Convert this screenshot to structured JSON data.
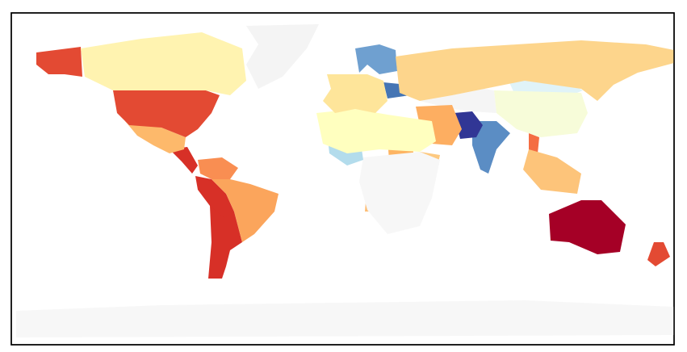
{
  "map": {
    "type": "choropleth",
    "frame_color": "#000000",
    "no_data_color": "#f7f7f7",
    "regions": [
      {
        "color": "#f4f4f4"
      },
      {
        "color": "#fff3b0"
      },
      {
        "color": "#e34a33"
      },
      {
        "color": "#e34a33"
      },
      {
        "color": "#fdb96b"
      },
      {
        "color": "#d73027"
      },
      {
        "color": "#f98e52"
      },
      {
        "color": "#fba55c"
      },
      {
        "color": "#d73027"
      },
      {
        "color": "#d73027"
      },
      {
        "color": "#fdd58c"
      },
      {
        "color": "#6fa0d0"
      },
      {
        "color": "#fee59a"
      },
      {
        "color": "#4575b4"
      },
      {
        "color": "#ffffbf"
      },
      {
        "color": "#b3dcec"
      },
      {
        "color": "#f7f7f7"
      },
      {
        "color": "#fdb462"
      },
      {
        "color": "#fdae61"
      },
      {
        "color": "#313695"
      },
      {
        "color": "#5b8dc4"
      },
      {
        "color": "#f7fcd9"
      },
      {
        "color": "#e0f3f8"
      },
      {
        "color": "#f5f5f5"
      },
      {
        "color": "#fdc47a"
      },
      {
        "color": "#f46d43"
      },
      {
        "color": "#a50026"
      },
      {
        "color": "#e34a33"
      },
      {
        "color": "#f7f7f7"
      },
      {
        "color": "#fdbd74"
      },
      {
        "color": "#fdc980"
      }
    ]
  }
}
